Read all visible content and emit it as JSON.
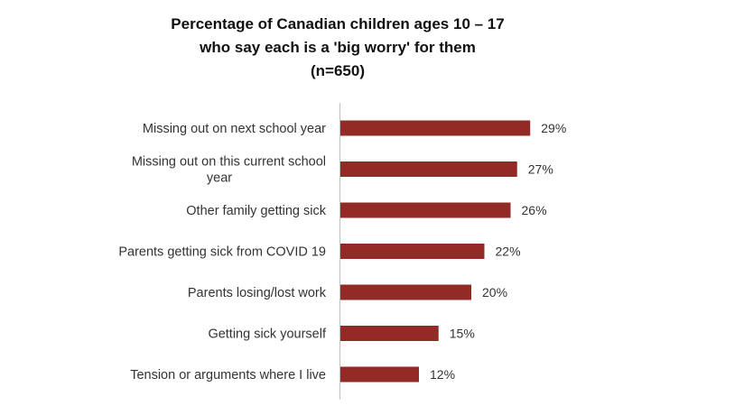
{
  "chart_data": {
    "type": "bar",
    "orientation": "horizontal",
    "title_lines": [
      "Percentage of Canadian children ages 10 – 17",
      "who say each is a 'big worry' for them",
      "(n=650)"
    ],
    "categories": [
      [
        "Missing out on next school year"
      ],
      [
        "Missing out on this current school",
        "year"
      ],
      [
        "Other family getting sick"
      ],
      [
        "Parents getting sick from COVID 19"
      ],
      [
        "Parents losing/lost work"
      ],
      [
        "Getting sick yourself"
      ],
      [
        "Tension or arguments where I live"
      ]
    ],
    "values": [
      29,
      27,
      26,
      22,
      20,
      15,
      12
    ],
    "value_labels": [
      "29%",
      "27%",
      "26%",
      "22%",
      "20%",
      "15%",
      "12%"
    ],
    "unit": "%",
    "xlim": [
      0,
      35
    ],
    "grid": false,
    "legend": "none",
    "bar_color": "#922b26"
  }
}
